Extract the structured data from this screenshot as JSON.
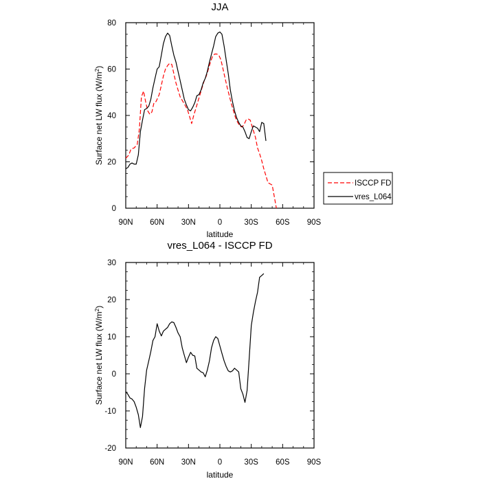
{
  "chart_data": [
    {
      "type": "line",
      "title": "JJA",
      "xlabel": "latitude",
      "ylabel": "Surface net LW flux (W/m",
      "ylabel_sup": "2",
      "ylabel_end": ")",
      "xlim": [
        90,
        -90
      ],
      "ylim": [
        0,
        80
      ],
      "x_ticks": [
        90,
        60,
        30,
        0,
        -30,
        -60,
        -90
      ],
      "x_tick_labels": [
        "90N",
        "60N",
        "30N",
        "0",
        "30S",
        "60S",
        "90S"
      ],
      "y_ticks": [
        0,
        20,
        40,
        60,
        80
      ],
      "y_tick_labels": [
        "0",
        "20",
        "40",
        "60",
        "80"
      ],
      "legend": [
        "ISCCP FD",
        "vres_L064"
      ],
      "legend_position": "right",
      "series": [
        {
          "name": "ISCCP FD",
          "color": "#ff0000",
          "dash": "dashed",
          "points": [
            [
              90,
              21.5
            ],
            [
              87,
              23
            ],
            [
              85,
              25.5
            ],
            [
              82,
              26
            ],
            [
              79,
              27.5
            ],
            [
              77,
              34
            ],
            [
              75,
              48
            ],
            [
              73,
              50.5
            ],
            [
              71,
              46
            ],
            [
              69,
              42
            ],
            [
              67,
              40.5
            ],
            [
              65,
              41.5
            ],
            [
              63,
              45.5
            ],
            [
              61,
              46
            ],
            [
              58,
              49
            ],
            [
              56,
              53
            ],
            [
              54,
              57
            ],
            [
              52,
              60
            ],
            [
              50,
              61.5
            ],
            [
              48,
              62.5
            ],
            [
              46,
              62
            ],
            [
              44,
              58
            ],
            [
              42,
              54
            ],
            [
              40,
              51
            ],
            [
              38,
              48
            ],
            [
              36,
              46.5
            ],
            [
              34,
              45
            ],
            [
              31,
              42.5
            ],
            [
              29,
              39.5
            ],
            [
              27,
              36.5
            ],
            [
              25,
              40
            ],
            [
              23,
              43
            ],
            [
              21,
              46
            ],
            [
              19,
              49
            ],
            [
              17,
              52
            ],
            [
              15,
              55
            ],
            [
              13,
              57
            ],
            [
              11,
              60
            ],
            [
              9,
              63
            ],
            [
              7,
              65.5
            ],
            [
              5,
              66.5
            ],
            [
              3,
              66.5
            ],
            [
              1,
              66
            ],
            [
              -1,
              64
            ],
            [
              -3,
              60
            ],
            [
              -5,
              56
            ],
            [
              -7,
              52
            ],
            [
              -9,
              48.5
            ],
            [
              -11,
              45
            ],
            [
              -13,
              42
            ],
            [
              -15,
              39
            ],
            [
              -17,
              37
            ],
            [
              -19,
              35.5
            ],
            [
              -21,
              35
            ],
            [
              -23,
              36
            ],
            [
              -25,
              38
            ],
            [
              -27,
              38.5
            ],
            [
              -29,
              38
            ],
            [
              -31,
              35
            ],
            [
              -34,
              30.5
            ],
            [
              -36,
              26
            ],
            [
              -38,
              23.5
            ],
            [
              -40,
              20.5
            ],
            [
              -42,
              17
            ],
            [
              -44,
              14
            ],
            [
              -46,
              11
            ],
            [
              -48,
              10.5
            ],
            [
              -50,
              10
            ],
            [
              -52,
              5
            ],
            [
              -54,
              0
            ]
          ]
        },
        {
          "name": "vres_L064",
          "color": "#000000",
          "dash": "solid",
          "points": [
            [
              90,
              17
            ],
            [
              88,
              17.5
            ],
            [
              86,
              19
            ],
            [
              84,
              19.5
            ],
            [
              82,
              19
            ],
            [
              80,
              19
            ],
            [
              78,
              23
            ],
            [
              76,
              33
            ],
            [
              74,
              38
            ],
            [
              72,
              42.5
            ],
            [
              70,
              43
            ],
            [
              68,
              44
            ],
            [
              66,
              47
            ],
            [
              64,
              52
            ],
            [
              62,
              56
            ],
            [
              60,
              60
            ],
            [
              58,
              61
            ],
            [
              56,
              66
            ],
            [
              54,
              71
            ],
            [
              52,
              74
            ],
            [
              50,
              75.5
            ],
            [
              48,
              74.5
            ],
            [
              46,
              70
            ],
            [
              44,
              66
            ],
            [
              42,
              63
            ],
            [
              40,
              59
            ],
            [
              38,
              55
            ],
            [
              36,
              51
            ],
            [
              34,
              47
            ],
            [
              32,
              44.5
            ],
            [
              30,
              42.5
            ],
            [
              28,
              42
            ],
            [
              26,
              43.5
            ],
            [
              24,
              45.5
            ],
            [
              22,
              48.5
            ],
            [
              20,
              49
            ],
            [
              18,
              51
            ],
            [
              16,
              54
            ],
            [
              14,
              56
            ],
            [
              12,
              59
            ],
            [
              10,
              63
            ],
            [
              8,
              66.5
            ],
            [
              6,
              70
            ],
            [
              4,
              74
            ],
            [
              2,
              75.5
            ],
            [
              0,
              76
            ],
            [
              -2,
              75
            ],
            [
              -4,
              70
            ],
            [
              -6,
              64
            ],
            [
              -8,
              58
            ],
            [
              -10,
              51
            ],
            [
              -12,
              46
            ],
            [
              -14,
              42
            ],
            [
              -16,
              39
            ],
            [
              -18,
              37
            ],
            [
              -20,
              35.5
            ],
            [
              -22,
              35
            ],
            [
              -24,
              33
            ],
            [
              -26,
              30.5
            ],
            [
              -28,
              30
            ],
            [
              -30,
              33
            ],
            [
              -32,
              35.5
            ],
            [
              -34,
              35
            ],
            [
              -36,
              34.5
            ],
            [
              -38,
              33
            ],
            [
              -40,
              37
            ],
            [
              -42,
              36.5
            ],
            [
              -44,
              29
            ]
          ]
        }
      ]
    },
    {
      "type": "line",
      "title": "vres_L064 - ISCCP FD",
      "xlabel": "latitude",
      "ylabel": "Surface net LW flux (W/m",
      "ylabel_sup": "2",
      "ylabel_end": ")",
      "xlim": [
        90,
        -90
      ],
      "ylim": [
        -20,
        30
      ],
      "x_ticks": [
        90,
        60,
        30,
        0,
        -30,
        -60,
        -90
      ],
      "x_tick_labels": [
        "90N",
        "60N",
        "30N",
        "0",
        "30S",
        "60S",
        "90S"
      ],
      "y_ticks": [
        -20,
        -10,
        0,
        10,
        20,
        30
      ],
      "y_tick_labels": [
        "-20",
        "-10",
        "0",
        "10",
        "20",
        "30"
      ],
      "series": [
        {
          "name": "vres_L064 - ISCCP FD",
          "color": "#000000",
          "dash": "solid",
          "points": [
            [
              90,
              -4.8
            ],
            [
              88,
              -5.5
            ],
            [
              86,
              -6.5
            ],
            [
              84,
              -6.8
            ],
            [
              82,
              -7.5
            ],
            [
              80,
              -9
            ],
            [
              78,
              -11
            ],
            [
              76,
              -14.5
            ],
            [
              74,
              -11.5
            ],
            [
              72,
              -4
            ],
            [
              70,
              1
            ],
            [
              68,
              3.5
            ],
            [
              66,
              6
            ],
            [
              64,
              9
            ],
            [
              62,
              10
            ],
            [
              60,
              13.5
            ],
            [
              58,
              11.5
            ],
            [
              56,
              10.2
            ],
            [
              54,
              11.5
            ],
            [
              52,
              12
            ],
            [
              50,
              12.5
            ],
            [
              48,
              13.5
            ],
            [
              46,
              14
            ],
            [
              44,
              13.8
            ],
            [
              42,
              12.5
            ],
            [
              40,
              11
            ],
            [
              38,
              10
            ],
            [
              36,
              7
            ],
            [
              34,
              5
            ],
            [
              32,
              3
            ],
            [
              30,
              4.5
            ],
            [
              28,
              5.8
            ],
            [
              26,
              5
            ],
            [
              24,
              4.8
            ],
            [
              22,
              1.5
            ],
            [
              20,
              1
            ],
            [
              18,
              0.5
            ],
            [
              16,
              0.3
            ],
            [
              14,
              -0.8
            ],
            [
              12,
              1
            ],
            [
              10,
              3.5
            ],
            [
              8,
              7
            ],
            [
              6,
              9
            ],
            [
              4,
              10
            ],
            [
              2,
              9.5
            ],
            [
              0,
              7.5
            ],
            [
              -2,
              5.5
            ],
            [
              -4,
              3.5
            ],
            [
              -6,
              2
            ],
            [
              -8,
              0.8
            ],
            [
              -10,
              0.5
            ],
            [
              -12,
              0.8
            ],
            [
              -14,
              1.5
            ],
            [
              -16,
              1
            ],
            [
              -18,
              0.5
            ],
            [
              -20,
              -4
            ],
            [
              -22,
              -5.5
            ],
            [
              -24,
              -7.7
            ],
            [
              -26,
              -4.5
            ],
            [
              -28,
              4
            ],
            [
              -30,
              13
            ],
            [
              -32,
              16.5
            ],
            [
              -34,
              19.5
            ],
            [
              -36,
              22
            ],
            [
              -38,
              26
            ],
            [
              -40,
              26.5
            ],
            [
              -42,
              27
            ]
          ]
        }
      ]
    }
  ]
}
